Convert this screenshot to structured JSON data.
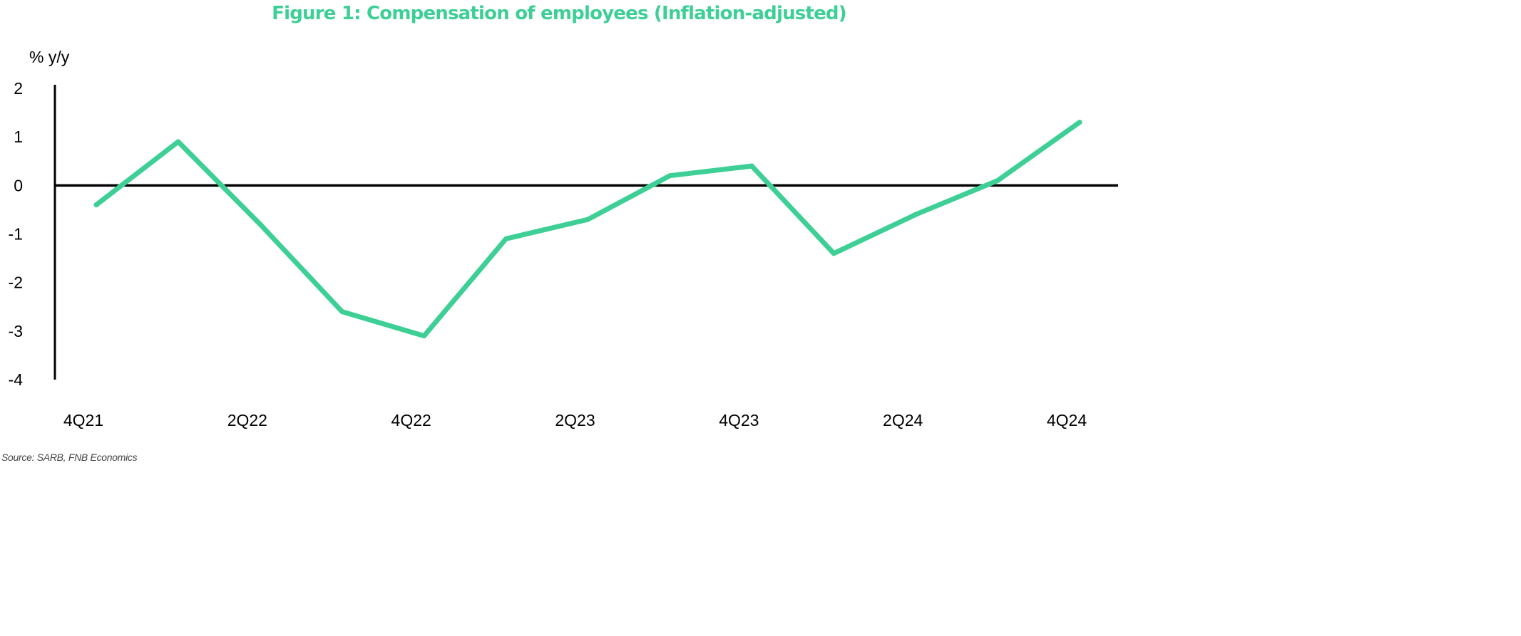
{
  "colors": {
    "accent": "#3ecf96",
    "axis": "#000000"
  },
  "source": "Source: SARB, FNB Economics",
  "chart_data": {
    "type": "line",
    "title": "Figure 1: Compensation of employees (Inflation-adjusted)",
    "ylabel": "% y/y",
    "xlabel": "",
    "ylim": [
      -4,
      2
    ],
    "y_ticks": [
      "2",
      "1",
      "0",
      "-1",
      "-2",
      "-3",
      "-4"
    ],
    "y_tick_values": [
      2,
      1,
      0,
      -1,
      -2,
      -3,
      -4
    ],
    "x_tick_labels": [
      "4Q21",
      "2Q22",
      "4Q22",
      "2Q23",
      "4Q23",
      "2Q24",
      "4Q24"
    ],
    "x": [
      "4Q21",
      "1Q22",
      "2Q22",
      "3Q22",
      "4Q22",
      "1Q23",
      "2Q23",
      "3Q23",
      "4Q23",
      "1Q24",
      "2Q24",
      "3Q24",
      "4Q24"
    ],
    "series": [
      {
        "values": [
          -0.4,
          0.9,
          -0.8,
          -2.6,
          -3.1,
          -1.1,
          -0.7,
          0.2,
          0.4,
          -1.4,
          -0.6,
          0.1,
          1.3
        ]
      }
    ],
    "grid": false,
    "zero_line": true
  }
}
